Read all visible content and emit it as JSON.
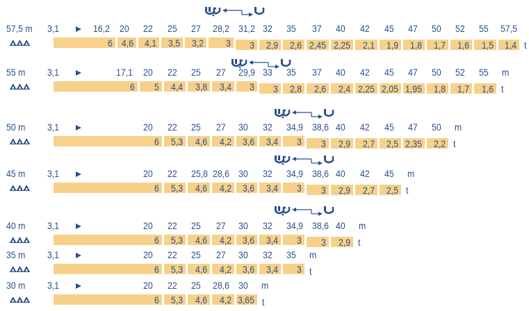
{
  "rows": [
    {
      "label": "57,5 m",
      "start": "3,1",
      "radii": [
        "16,2",
        "20",
        "22",
        "25",
        "27",
        "28,2",
        "31,2",
        "32",
        "35",
        "37",
        "40",
        "42",
        "45",
        "47",
        "50",
        "52",
        "55",
        "57,5"
      ],
      "loads": [
        "6",
        "4,6",
        "4,1",
        "3,5",
        "3,2",
        "3",
        "3",
        "2,9",
        "2,6",
        "2,45",
        "2,25",
        "2,1",
        "1,9",
        "1,8",
        "1,7",
        "1,6",
        "1,5",
        "1,4"
      ],
      "radius_unit": "",
      "load_unit": "t",
      "trolley_icon": true
    },
    {
      "label": "55 m",
      "start": "3,1",
      "radii": [
        "17,1",
        "20",
        "22",
        "25",
        "27",
        "29,9",
        "33",
        "35",
        "37",
        "40",
        "42",
        "45",
        "47",
        "50",
        "52",
        "55"
      ],
      "loads": [
        "6",
        "5",
        "4,4",
        "3,8",
        "3,4",
        "3",
        "3",
        "2,8",
        "2,6",
        "2,4",
        "2,25",
        "2,05",
        "1,95",
        "1,8",
        "1,7",
        "1,6"
      ],
      "radius_unit": "m",
      "load_unit": "t",
      "trolley_icon": true
    },
    {
      "label": "50 m",
      "start": "3,1",
      "radii": [
        "20",
        "22",
        "25",
        "27",
        "30",
        "32",
        "34,9",
        "38,6",
        "40",
        "42",
        "45",
        "47",
        "50"
      ],
      "loads": [
        "6",
        "5,3",
        "4,6",
        "4,2",
        "3,6",
        "3,4",
        "3",
        "3",
        "2,9",
        "2,7",
        "2,5",
        "2,35",
        "2,2"
      ],
      "radius_unit": "m",
      "load_unit": "t",
      "trolley_icon": true
    },
    {
      "label": "45 m",
      "start": "3,1",
      "radii": [
        "20",
        "22",
        "25,8",
        "28,6",
        "30",
        "32",
        "34,9",
        "38,6",
        "40",
        "42",
        "45"
      ],
      "loads": [
        "6",
        "5,3",
        "4,6",
        "4,2",
        "3,6",
        "3,4",
        "3",
        "3",
        "2,9",
        "2,7",
        "2,5"
      ],
      "radius_unit": "m",
      "load_unit": "t",
      "trolley_icon": true
    },
    {
      "label": "40 m",
      "start": "3,1",
      "radii": [
        "20",
        "22",
        "25",
        "27",
        "30",
        "32",
        "34,9",
        "38,6",
        "40"
      ],
      "loads": [
        "6",
        "5,3",
        "4,6",
        "4,2",
        "3,6",
        "3,4",
        "3",
        "3",
        "2,9"
      ],
      "radius_unit": "m",
      "load_unit": "t",
      "trolley_icon": true
    },
    {
      "label": "35 m",
      "start": "3,1",
      "radii": [
        "20",
        "22",
        "25",
        "27",
        "30",
        "32",
        "35"
      ],
      "loads": [
        "6",
        "5,3",
        "4,6",
        "4,2",
        "3,6",
        "3,4",
        "3"
      ],
      "radius_unit": "m",
      "load_unit": "t",
      "trolley_icon": false
    },
    {
      "label": "30 m",
      "start": "3,1",
      "radii": [
        "20",
        "22",
        "25",
        "28,6",
        "30"
      ],
      "loads": [
        "6",
        "5,3",
        "4,6",
        "4,2",
        "3,65"
      ],
      "radius_unit": "m",
      "load_unit": "t",
      "trolley_icon": false
    }
  ],
  "colors": {
    "text": "#2b4f8c",
    "bar": "#f7d18a",
    "icon": "#2b4f8c"
  },
  "icons": {
    "jib": "jib-triangles-icon",
    "start_arrow": "play-arrow-icon",
    "trolley": "double-trolley-icon"
  }
}
